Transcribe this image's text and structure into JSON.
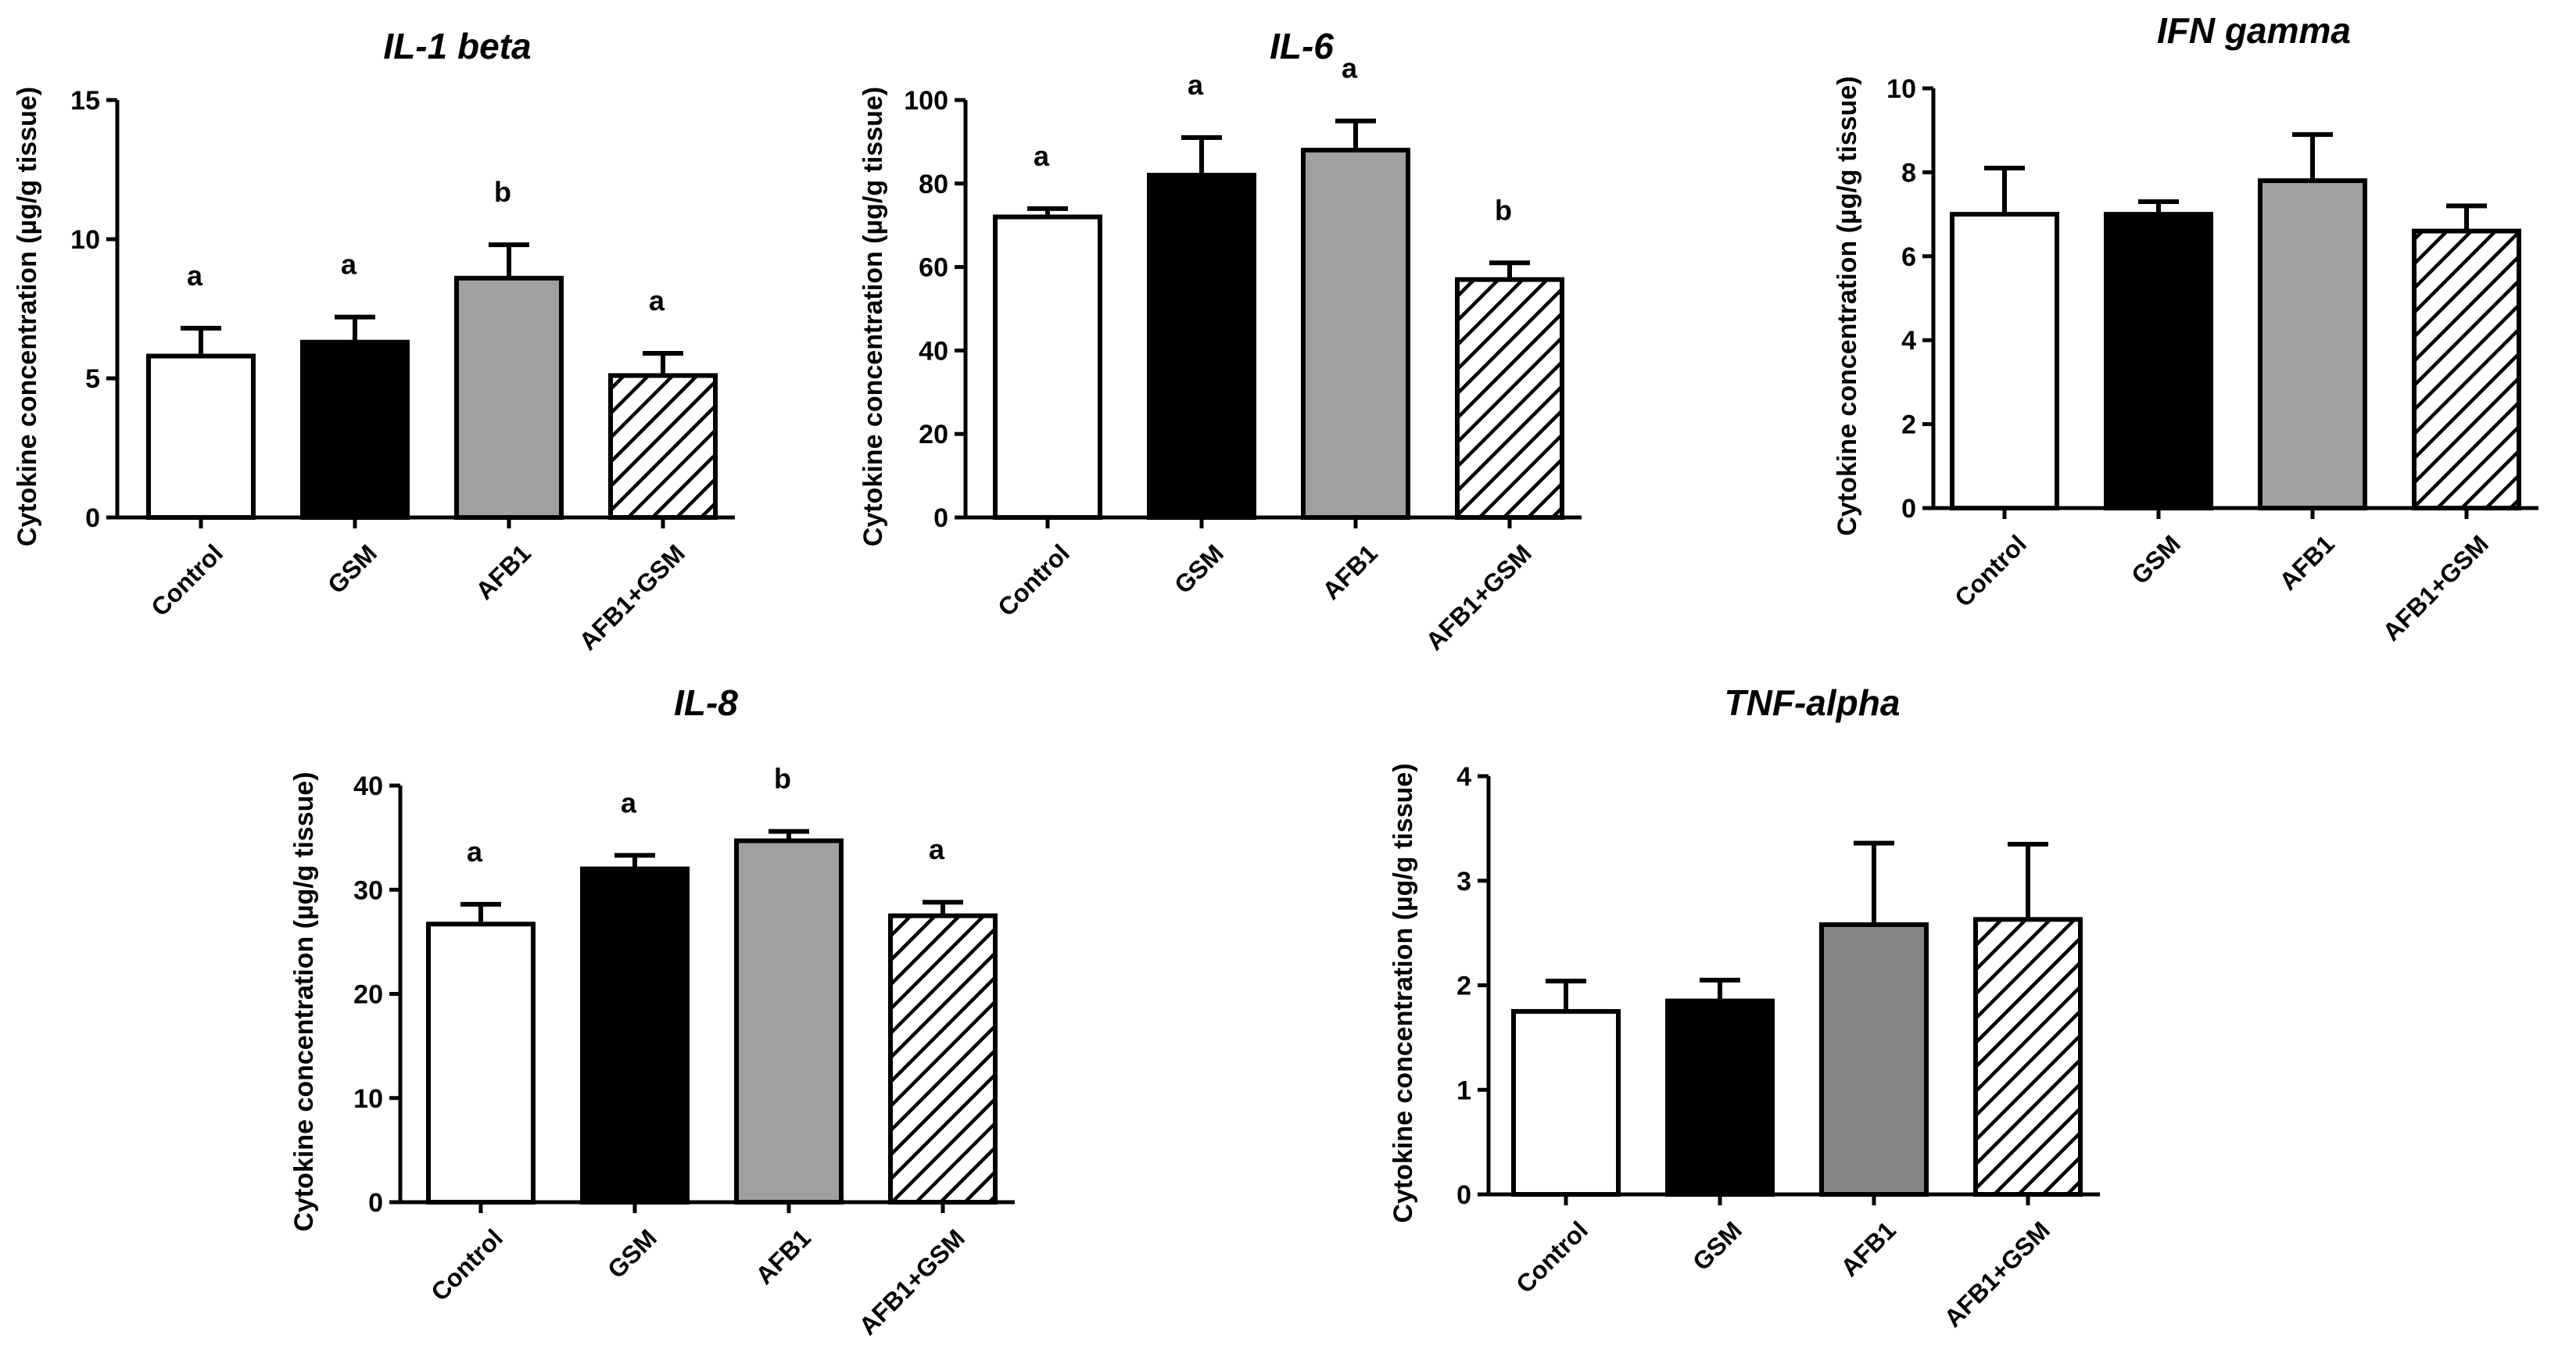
{
  "colors": {
    "Control": "#ffffff",
    "GSM": "#000000",
    "AFB1": "#a0a0a0",
    "AFB1_TNF": "#858585",
    "hatch": "#000000"
  },
  "chart_data": [
    {
      "type": "bar",
      "title": "IL-1 beta",
      "ylabel": "Cytokine concentration (µg/g tissue)",
      "xlabel": "",
      "categories": [
        "Control",
        "GSM",
        "AFB1",
        "AFB1+GSM"
      ],
      "values": [
        5.8,
        6.3,
        8.6,
        5.1
      ],
      "errors": [
        1.0,
        0.9,
        1.2,
        0.8
      ],
      "significance": [
        "a",
        "a",
        "b",
        "a"
      ],
      "ylim": [
        0,
        15
      ],
      "yticks": [
        0,
        5,
        10,
        15
      ]
    },
    {
      "type": "bar",
      "title": "IL-6",
      "ylabel": "Cytokine concentration (µg/g tissue)",
      "xlabel": "",
      "categories": [
        "Control",
        "GSM",
        "AFB1",
        "AFB1+GSM"
      ],
      "values": [
        72,
        82,
        88,
        57
      ],
      "errors": [
        2,
        9,
        7,
        4
      ],
      "significance": [
        "a",
        "a",
        "a",
        "b"
      ],
      "ylim": [
        0,
        100
      ],
      "yticks": [
        0,
        20,
        40,
        60,
        80,
        100
      ]
    },
    {
      "type": "bar",
      "title": "IFN gamma",
      "ylabel": "Cytokine concentration (µg/g tissue)",
      "xlabel": "",
      "categories": [
        "Control",
        "GSM",
        "AFB1",
        "AFB1+GSM"
      ],
      "values": [
        7.0,
        7.0,
        7.8,
        6.6
      ],
      "errors": [
        1.1,
        0.3,
        1.1,
        0.6
      ],
      "significance": [
        "",
        "",
        "",
        ""
      ],
      "ylim": [
        0,
        10
      ],
      "yticks": [
        0,
        2,
        4,
        6,
        8,
        10
      ]
    },
    {
      "type": "bar",
      "title": "IL-8",
      "ylabel": "Cytokine concentration (µg/g tissue)",
      "xlabel": "",
      "categories": [
        "Control",
        "GSM",
        "AFB1",
        "AFB1+GSM"
      ],
      "values": [
        26.7,
        32.0,
        34.7,
        27.5
      ],
      "errors": [
        1.9,
        1.3,
        0.9,
        1.3
      ],
      "significance": [
        "a",
        "a",
        "b",
        "a"
      ],
      "ylim": [
        0,
        40
      ],
      "yticks": [
        0,
        10,
        20,
        30,
        40
      ]
    },
    {
      "type": "bar",
      "title": "TNF-alpha",
      "ylabel": "Cytokine concentration (µg/g tissue)",
      "xlabel": "",
      "categories": [
        "Control",
        "GSM",
        "AFB1",
        "AFB1+GSM"
      ],
      "values": [
        1.75,
        1.85,
        2.58,
        2.63
      ],
      "errors": [
        0.29,
        0.2,
        0.78,
        0.72
      ],
      "significance": [
        "",
        "",
        "",
        ""
      ],
      "ylim": [
        0,
        4
      ],
      "yticks": [
        0,
        1,
        2,
        3,
        4
      ]
    }
  ]
}
